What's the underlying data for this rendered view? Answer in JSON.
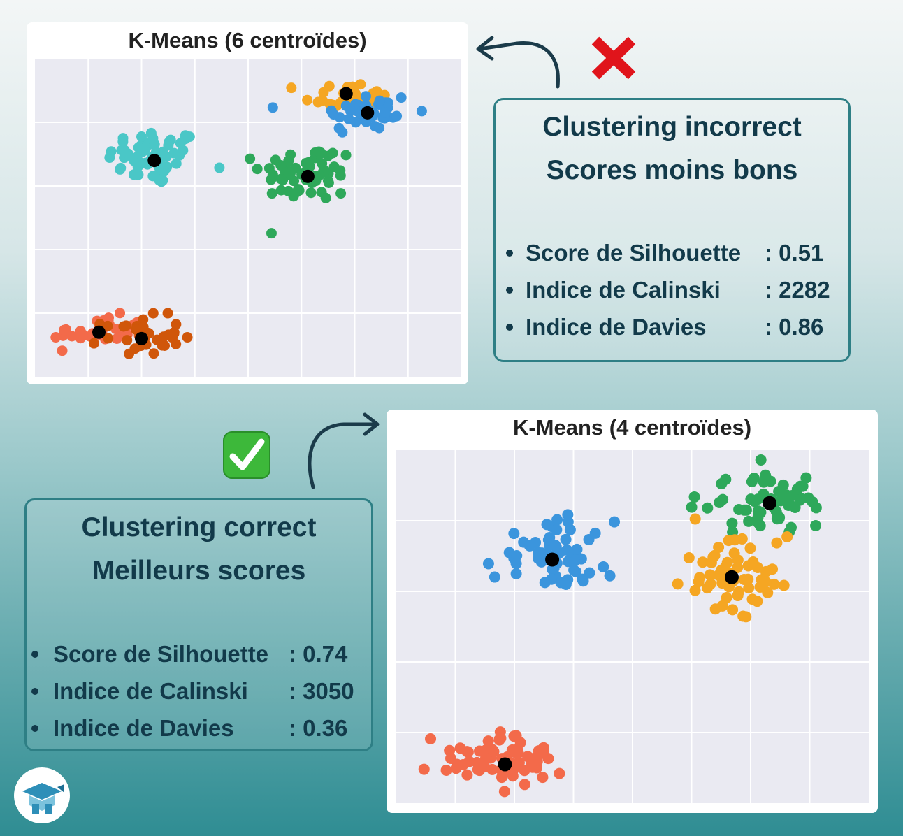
{
  "top_panel": {
    "title": "K-Means (6 centroïdes)",
    "status_icon": "red-cross-icon",
    "box_line1": "Clustering incorrect",
    "box_line2": "Scores moins bons",
    "metrics": [
      {
        "label": "Score de Silhouette",
        "value": ": 0.51"
      },
      {
        "label": "Indice de Calinski",
        "value": ": 2282"
      },
      {
        "label": "Indice de Davies",
        "value": ": 0.86"
      }
    ]
  },
  "bottom_panel": {
    "title": "K-Means (4 centroïdes)",
    "status_icon": "green-check-icon",
    "box_line1": "Clustering correct",
    "box_line2": "Meilleurs scores",
    "metrics": [
      {
        "label": "Score de Silhouette",
        "value": ": 0.74"
      },
      {
        "label": "Indice de Calinski",
        "value": ": 3050"
      },
      {
        "label": "Indice de Davies",
        "value": ": 0.36"
      }
    ]
  },
  "chart_data": [
    {
      "type": "scatter",
      "title": "K-Means (6 centroïdes)",
      "xlabel": "",
      "ylabel": "",
      "xlim": [
        0,
        10
      ],
      "ylim": [
        0,
        10
      ],
      "grid": true,
      "series": [
        {
          "color": "#4ac7c7",
          "center": [
            2.8,
            6.9
          ],
          "spread": [
            0.55,
            0.45
          ],
          "n": 60,
          "centroid": [
            2.8,
            6.8
          ]
        },
        {
          "color": "#f5a623",
          "center": [
            7.3,
            8.8
          ],
          "spread": [
            0.5,
            0.25
          ],
          "n": 35,
          "centroid": [
            7.3,
            8.9
          ]
        },
        {
          "color": "#3b95dd",
          "center": [
            7.8,
            8.3
          ],
          "spread": [
            0.55,
            0.35
          ],
          "n": 40,
          "centroid": [
            7.8,
            8.3
          ]
        },
        {
          "color": "#2ea85a",
          "center": [
            6.4,
            6.4
          ],
          "spread": [
            0.55,
            0.45
          ],
          "n": 60,
          "centroid": [
            6.4,
            6.3
          ]
        },
        {
          "color": "#f36a4a",
          "center": [
            1.5,
            1.4
          ],
          "spread": [
            0.55,
            0.25
          ],
          "n": 35,
          "centroid": [
            1.5,
            1.4
          ]
        },
        {
          "color": "#d0560a",
          "center": [
            2.5,
            1.3
          ],
          "spread": [
            0.45,
            0.3
          ],
          "n": 35,
          "centroid": [
            2.5,
            1.2
          ]
        }
      ]
    },
    {
      "type": "scatter",
      "title": "K-Means (4 centroïdes)",
      "xlabel": "",
      "ylabel": "",
      "xlim": [
        0,
        10
      ],
      "ylim": [
        0,
        10
      ],
      "grid": true,
      "series": [
        {
          "color": "#3b95dd",
          "center": [
            3.3,
            7.0
          ],
          "spread": [
            0.6,
            0.5
          ],
          "n": 60,
          "centroid": [
            3.3,
            6.9
          ]
        },
        {
          "color": "#2ea85a",
          "center": [
            7.9,
            8.5
          ],
          "spread": [
            0.7,
            0.4
          ],
          "n": 60,
          "centroid": [
            7.9,
            8.5
          ]
        },
        {
          "color": "#f5a623",
          "center": [
            7.1,
            6.5
          ],
          "spread": [
            0.6,
            0.5
          ],
          "n": 60,
          "centroid": [
            7.1,
            6.4
          ]
        },
        {
          "color": "#f36a4a",
          "center": [
            2.3,
            1.2
          ],
          "spread": [
            0.75,
            0.35
          ],
          "n": 70,
          "centroid": [
            2.3,
            1.1
          ]
        }
      ]
    }
  ]
}
